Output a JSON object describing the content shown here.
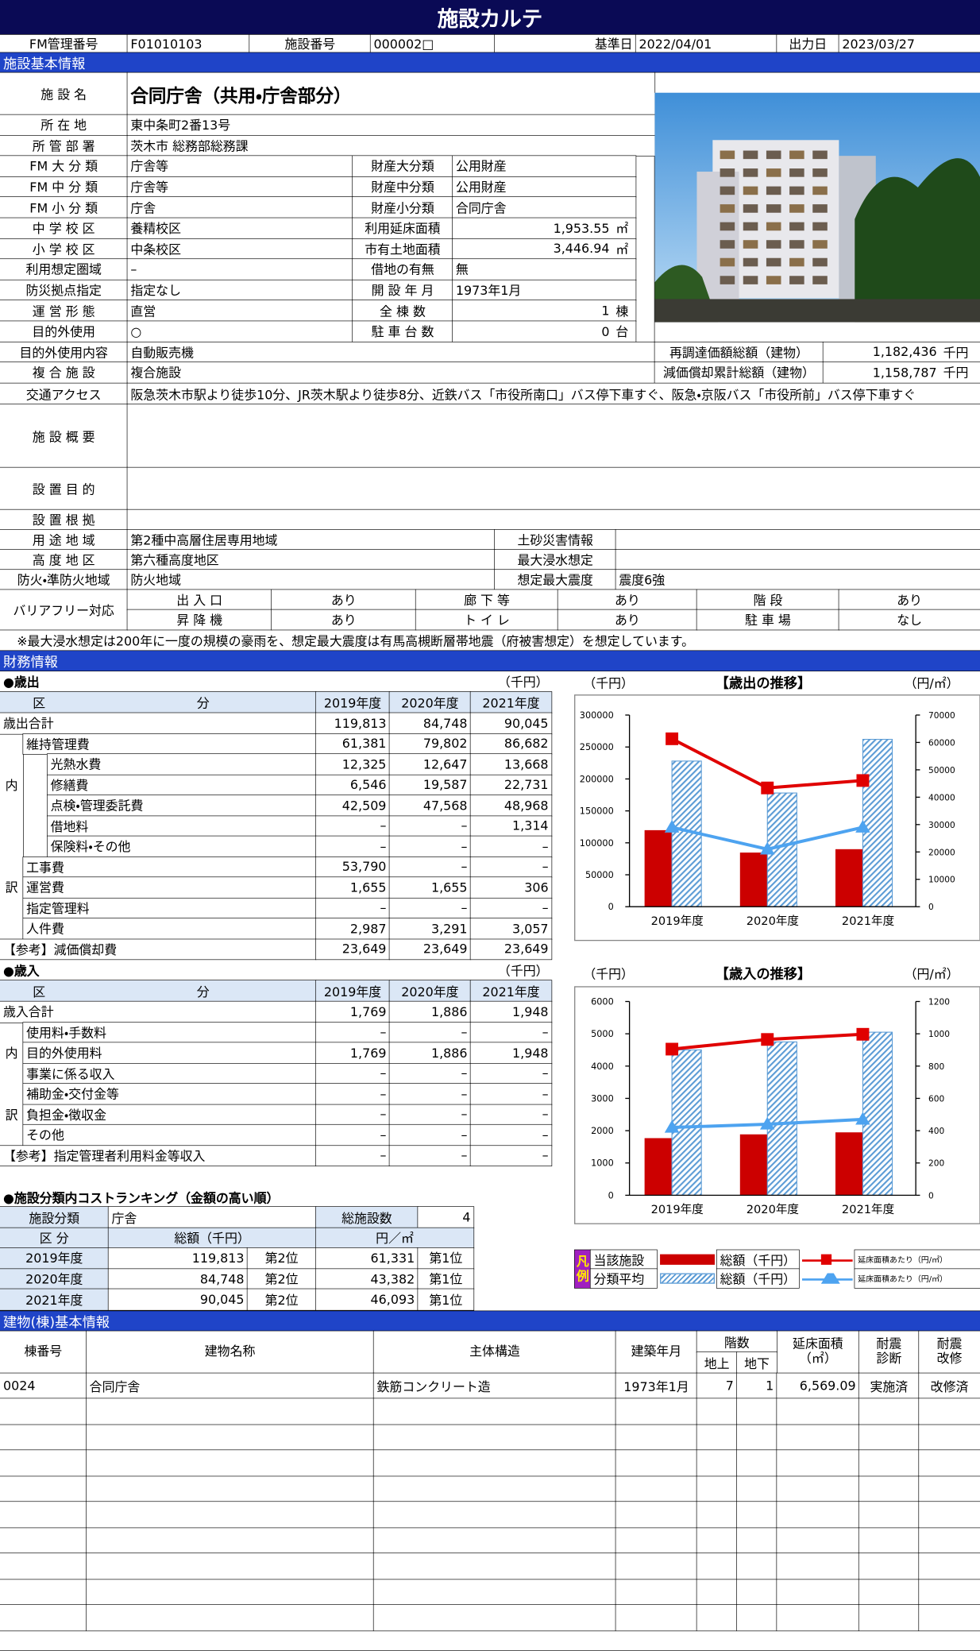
{
  "header": {
    "title": "施設カルテ",
    "fm_label": "FM管理番号",
    "fm_no": "F01010103",
    "facility_label": "施設番号",
    "facility_no": "000002□",
    "base_label": "基準日",
    "base_date": "2022/04/01",
    "output_label": "出力日",
    "output_date": "2023/03/27"
  },
  "basic": {
    "section": "施設基本情報",
    "rows": [
      [
        "施 設 名",
        "合同庁舎（共用・庁舎部分）"
      ],
      [
        "所 在 地",
        "東中条町2番13号"
      ],
      [
        "所 管 部 署",
        "茨木市 総務部総務課"
      ],
      [
        "FM 大 分 類",
        "庁舎等",
        "財産大分類",
        "公用財産"
      ],
      [
        "FM 中 分 類",
        "庁舎等",
        "財産中分類",
        "公用財産"
      ],
      [
        "FM 小 分 類",
        "庁舎",
        "財産小分類",
        "合同庁舎"
      ],
      [
        "中 学 校 区",
        "養精校区",
        "利用延床面積",
        "1,953.55",
        "㎡"
      ],
      [
        "小 学 校 区",
        "中条校区",
        "市有土地面積",
        "3,446.94",
        "㎡"
      ],
      [
        "利用想定圏域",
        "–",
        "借地の有無",
        "無"
      ],
      [
        "防災拠点指定",
        "指定なし",
        "開 設 年 月",
        "1973年1月"
      ],
      [
        "運 営 形 態",
        "直営",
        "全 棟 数",
        "1",
        "棟"
      ],
      [
        "目的外使用",
        "○",
        "駐 車 台 数",
        "0",
        "台"
      ],
      [
        "目的外使用内容",
        "自動販売機",
        "再調達価額総額（建物）",
        "1,182,436",
        "千円"
      ],
      [
        "複 合 施 設",
        "複合施設",
        "減価償却累計総額（建物）",
        "1,158,787",
        "千円"
      ],
      [
        "交通アクセス",
        "阪急茨木市駅より徒歩10分、JR茨木駅より徒歩8分、近鉄バス「市役所南口」バス停下車すぐ、阪急・京阪バス「市役所前」バス停下車すぐ"
      ],
      [
        "施 設 概 要"
      ],
      [
        "設 置 目 的"
      ],
      [
        "設 置 根 拠"
      ],
      [
        "用 途 地 域",
        "第2種中高層住居専用地域",
        "土砂災害情報"
      ],
      [
        "高 度 地 区",
        "第六種高度地区",
        "最大浸水想定"
      ],
      [
        "防火・準防火地域",
        "防火地域",
        "想定最大震度",
        "震度6強"
      ]
    ],
    "barrier": {
      "label": "バリアフリー対応",
      "items": [
        [
          "出 入 口",
          "あり"
        ],
        [
          "廊 下 等",
          "あり"
        ],
        [
          "階 段",
          "あり"
        ],
        [
          "昇 降 機",
          "あり"
        ],
        [
          "ト イ レ",
          "あり"
        ],
        [
          "駐 車 場",
          "なし"
        ]
      ]
    },
    "note": "※最大浸水想定は200年に一度の規模の豪雨を、想定最大震度は有馬高槻断層帯地震（府被害想定）を想定しています。"
  },
  "finance": {
    "section": "財務情報",
    "years": [
      "2019年度",
      "2020年度",
      "2021年度"
    ],
    "expense": {
      "title": "●歳出",
      "unit": "（千円）",
      "header": "区 分",
      "side": [
        "内",
        "訳"
      ],
      "rows": [
        {
          "label": "歳出合計",
          "level": 0,
          "values": [
            "119,813",
            "84,748",
            "90,045"
          ]
        },
        {
          "label": "維持管理費",
          "level": 1,
          "values": [
            "61,381",
            "79,802",
            "86,682"
          ]
        },
        {
          "label": "光熱水費",
          "level": 2,
          "values": [
            "12,325",
            "12,647",
            "13,668"
          ]
        },
        {
          "label": "修繕費",
          "level": 2,
          "values": [
            "6,546",
            "19,587",
            "22,731"
          ]
        },
        {
          "label": "点検・管理委託費",
          "level": 2,
          "values": [
            "42,509",
            "47,568",
            "48,968"
          ]
        },
        {
          "label": "借地料",
          "level": 2,
          "values": [
            "–",
            "–",
            "1,314"
          ]
        },
        {
          "label": "保険料・その他",
          "level": 2,
          "values": [
            "–",
            "–",
            "–"
          ]
        },
        {
          "label": "工事費",
          "level": 1,
          "values": [
            "53,790",
            "–",
            "–"
          ]
        },
        {
          "label": "運営費",
          "level": 1,
          "values": [
            "1,655",
            "1,655",
            "306"
          ]
        },
        {
          "label": "指定管理料",
          "level": 1,
          "values": [
            "–",
            "–",
            "–"
          ]
        },
        {
          "label": "人件費",
          "level": 1,
          "values": [
            "2,987",
            "3,291",
            "3,057"
          ]
        },
        {
          "label": "【参考】減価償却費",
          "level": 0,
          "values": [
            "23,649",
            "23,649",
            "23,649"
          ]
        }
      ]
    },
    "revenue": {
      "title": "●歳入",
      "unit": "（千円）",
      "header": "区 分",
      "side": [
        "内",
        "訳"
      ],
      "rows": [
        {
          "label": "歳入合計",
          "level": 0,
          "values": [
            "1,769",
            "1,886",
            "1,948"
          ]
        },
        {
          "label": "使用料・手数料",
          "level": 1,
          "values": [
            "–",
            "–",
            "–"
          ]
        },
        {
          "label": "目的外使用料",
          "level": 1,
          "values": [
            "1,769",
            "1,886",
            "1,948"
          ]
        },
        {
          "label": "事業に係る収入",
          "level": 1,
          "values": [
            "–",
            "–",
            "–"
          ]
        },
        {
          "label": "補助金・交付金等",
          "level": 1,
          "values": [
            "–",
            "–",
            "–"
          ]
        },
        {
          "label": "負担金・徴収金",
          "level": 1,
          "values": [
            "–",
            "–",
            "–"
          ]
        },
        {
          "label": "その他",
          "level": 1,
          "values": [
            "–",
            "–",
            "–"
          ]
        },
        {
          "label": "【参考】指定管理者利用料金等収入",
          "level": 0,
          "values": [
            "–",
            "–",
            "–"
          ]
        }
      ]
    },
    "ranking": {
      "title": "●施設分類内コストランキング（金額の高い順）",
      "class_label": "施設分類",
      "class_value": "庁舎",
      "count_label": "総施設数",
      "count": "4",
      "headers": [
        "区 分",
        "総額（千円）",
        "円／㎡"
      ],
      "rows": [
        [
          "2019年度",
          "119,813",
          "第2位",
          "61,331",
          "第1位"
        ],
        [
          "2020年度",
          "84,748",
          "第2位",
          "43,382",
          "第1位"
        ],
        [
          "2021年度",
          "90,045",
          "第2位",
          "46,093",
          "第1位"
        ]
      ]
    }
  },
  "chart_data": [
    {
      "type": "combo",
      "title": "【歳出の推移】",
      "ylabel": "（千円）",
      "y2label": "（円/㎡）",
      "legend_title": "凡例",
      "categories": [
        "2019年度",
        "2020年度",
        "2021年度"
      ],
      "ylim": [
        0,
        300000
      ],
      "yticks": [
        0,
        50000,
        100000,
        150000,
        200000,
        250000,
        300000
      ],
      "y2lim": [
        0,
        70000
      ],
      "y2ticks": [
        0,
        10000,
        20000,
        30000,
        40000,
        50000,
        60000,
        70000
      ],
      "series": [
        {
          "group": "当該施設",
          "name": "総額（千円）",
          "type": "bar",
          "color": "#cc0000",
          "values": [
            119813,
            84748,
            90045
          ]
        },
        {
          "group": "分類平均",
          "name": "総額（千円）",
          "type": "bar",
          "hatch": true,
          "color": "#5b9bd5",
          "values": [
            228000,
            178000,
            262000
          ]
        },
        {
          "name": "延床面積あたり（円/㎡）",
          "type": "line",
          "axis": "y2",
          "marker": "square",
          "color": "#e00000",
          "values": [
            61331,
            43382,
            46093
          ]
        },
        {
          "name": "延床面積あたり（円/㎡）",
          "type": "line",
          "axis": "y2",
          "marker": "triangle",
          "color": "#4da3f0",
          "values": [
            29000,
            21000,
            29000
          ]
        }
      ]
    },
    {
      "type": "combo",
      "title": "【歳入の推移】",
      "ylabel": "（千円）",
      "y2label": "（円/㎡）",
      "categories": [
        "2019年度",
        "2020年度",
        "2021年度"
      ],
      "ylim": [
        0,
        6000
      ],
      "yticks": [
        0,
        1000,
        2000,
        3000,
        4000,
        5000,
        6000
      ],
      "y2lim": [
        0,
        1200
      ],
      "y2ticks": [
        0,
        200,
        400,
        600,
        800,
        1000,
        1200
      ],
      "series": [
        {
          "type": "bar",
          "color": "#cc0000",
          "values": [
            1769,
            1886,
            1948
          ]
        },
        {
          "type": "bar",
          "hatch": true,
          "color": "#5b9bd5",
          "values": [
            4500,
            4750,
            5050
          ]
        },
        {
          "type": "line",
          "axis": "y2",
          "marker": "square",
          "color": "#e00000",
          "values": [
            905,
            965,
            997
          ]
        },
        {
          "type": "line",
          "axis": "y2",
          "marker": "triangle",
          "color": "#4da3f0",
          "values": [
            420,
            440,
            470
          ]
        }
      ]
    }
  ],
  "building": {
    "section": "建物(棟)基本情報",
    "headers": [
      "棟番号",
      "建物名称",
      "主体構造",
      "建築年月",
      "階数",
      "地上",
      "地下",
      "延床面積\n（㎡）",
      "耐震\n診断",
      "耐震\n改修"
    ],
    "rows": [
      [
        "0024",
        "合同庁舎",
        "鉄筋コンクリート造",
        "1973年1月",
        "7",
        "1",
        "6,569.09",
        "実施済",
        "改修済"
      ]
    ]
  }
}
